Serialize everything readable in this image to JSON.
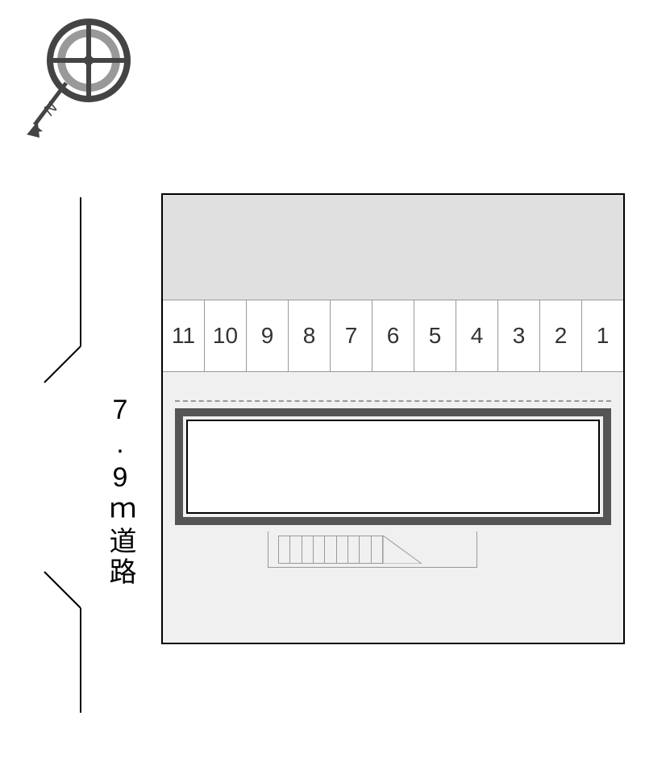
{
  "compass": {
    "direction_label": "N",
    "colors": {
      "ring_outer": "#444444",
      "ring_inner": "#999999",
      "pointer": "#444444"
    }
  },
  "site_plan": {
    "background_color": "#f0f0f0",
    "border_color": "#000000",
    "top_band_color": "#e0e0e0"
  },
  "parking": {
    "spaces": [
      "11",
      "10",
      "9",
      "8",
      "7",
      "6",
      "5",
      "4",
      "3",
      "2",
      "1"
    ],
    "cell_background": "#ffffff",
    "cell_border": "#999999",
    "label_fontsize": 28,
    "label_color": "#333333"
  },
  "building": {
    "outline_color": "#555555",
    "inner_background": "#ffffff",
    "inner_border": "#000000",
    "dashed_color": "#999999"
  },
  "entrance": {
    "stair_count": 9,
    "border_color": "#999999"
  },
  "road": {
    "label": "7.9ｍ道路",
    "label_fontsize": 34,
    "label_color": "#000000",
    "boundary_color": "#000000"
  }
}
